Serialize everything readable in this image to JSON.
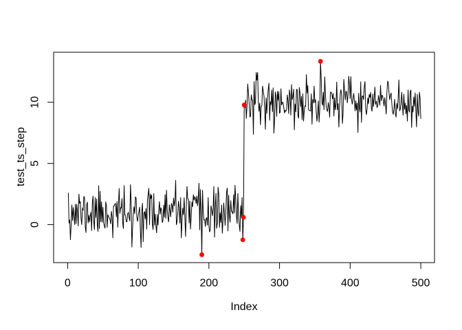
{
  "figure": {
    "background_color": "#ffffff",
    "title": ""
  },
  "chart_data": {
    "type": "line",
    "title": "",
    "xlabel": "Index",
    "ylabel": "test_ts_step",
    "x_ticks": [
      0,
      100,
      200,
      300,
      400,
      500
    ],
    "y_ticks": [
      0,
      5,
      10
    ],
    "xlim": [
      -19.8,
      519.4
    ],
    "ylim": [
      -3.11,
      14.09
    ],
    "n_points": 500,
    "grid": false,
    "legend": null,
    "line_color": "#000000",
    "marker_color": "#ff0000",
    "axis_color": "#000000",
    "series_model": {
      "description": "white-noise series with upward step change at index 250",
      "seed": 11,
      "segments": [
        {
          "start": 1,
          "end": 249,
          "mean": 0.95,
          "sd": 1.0,
          "clip_min": -1.9,
          "clip_max": 3.75
        },
        {
          "start": 250,
          "end": 500,
          "mean": 10.0,
          "sd": 1.0,
          "clip_min": 7.35,
          "clip_max": 12.45
        }
      ],
      "fixed_points": [
        {
          "x": 1,
          "y": 2.6
        },
        {
          "x": 91,
          "y": -1.85
        },
        {
          "x": 190,
          "y": -2.46
        },
        {
          "x": 248,
          "y": -1.24
        },
        {
          "x": 249,
          "y": 0.6
        },
        {
          "x": 250,
          "y": 9.78
        },
        {
          "x": 358,
          "y": 13.35
        }
      ]
    },
    "anomaly_points": [
      {
        "x": 190,
        "y": -2.46
      },
      {
        "x": 248,
        "y": -1.24
      },
      {
        "x": 249,
        "y": 0.6
      },
      {
        "x": 250,
        "y": 9.78
      },
      {
        "x": 358,
        "y": 13.35
      }
    ]
  }
}
